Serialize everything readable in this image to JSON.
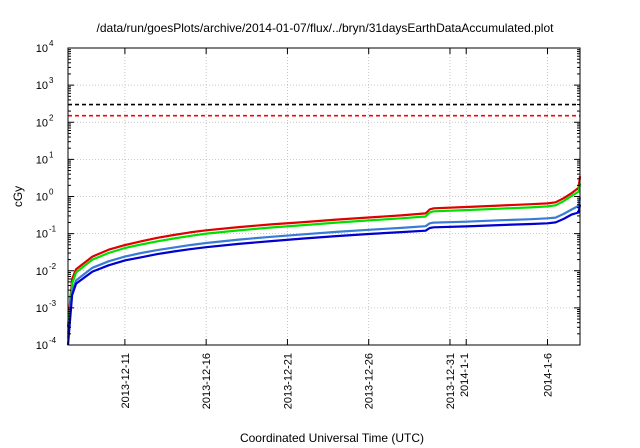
{
  "chart_data": {
    "type": "line",
    "title": "/data/run/goesPlots/archive/2014-01-07/flux/../bryn/31daysEarthDataAccumulated.plot",
    "xlabel": "Coordinated Universal Time (UTC)",
    "ylabel": "cGy",
    "yscale": "log",
    "ylim": [
      0.0001,
      10000
    ],
    "xlim": [
      "2013-12-07T12:00",
      "2014-01-08"
    ],
    "grid": true,
    "y_ticks": [
      {
        "base": "10",
        "exp": "-4",
        "value": 0.0001
      },
      {
        "base": "10",
        "exp": "-3",
        "value": 0.001
      },
      {
        "base": "10",
        "exp": "-2",
        "value": 0.01
      },
      {
        "base": "10",
        "exp": "-1",
        "value": 0.1
      },
      {
        "base": "10",
        "exp": "0",
        "value": 1
      },
      {
        "base": "10",
        "exp": "1",
        "value": 10
      },
      {
        "base": "10",
        "exp": "2",
        "value": 100
      },
      {
        "base": "10",
        "exp": "3",
        "value": 1000
      },
      {
        "base": "10",
        "exp": "4",
        "value": 10000
      }
    ],
    "x_ticks": [
      {
        "date": "2013-12-11",
        "label": "2013-12-11"
      },
      {
        "date": "2013-12-16",
        "label": "2013-12-16"
      },
      {
        "date": "2013-12-21",
        "label": "2013-12-21"
      },
      {
        "date": "2013-12-26",
        "label": "2013-12-26"
      },
      {
        "date": "2013-12-31",
        "label": "2013-12-31"
      },
      {
        "date": "2014-01-01",
        "label": "2014-1-1"
      },
      {
        "date": "2014-01-06",
        "label": "2014-1-6"
      }
    ],
    "reference_lines": [
      {
        "value": 300,
        "color": "#000000"
      },
      {
        "value": 150,
        "color": "#ff0000"
      }
    ],
    "series": [
      {
        "color": "#e00000",
        "points": [
          [
            "2013-12-07T12:00",
            0.0003
          ],
          [
            "2013-12-07T18:00",
            0.006
          ],
          [
            "2013-12-08",
            0.011
          ],
          [
            "2013-12-09",
            0.024
          ],
          [
            "2013-12-10",
            0.037
          ],
          [
            "2013-12-11",
            0.049
          ],
          [
            "2013-12-12",
            0.062
          ],
          [
            "2013-12-13",
            0.077
          ],
          [
            "2013-12-14",
            0.092
          ],
          [
            "2013-12-15",
            0.108
          ],
          [
            "2013-12-16",
            0.123
          ],
          [
            "2013-12-18",
            0.15
          ],
          [
            "2013-12-20",
            0.177
          ],
          [
            "2013-12-22",
            0.205
          ],
          [
            "2013-12-24",
            0.238
          ],
          [
            "2013-12-26",
            0.272
          ],
          [
            "2013-12-28",
            0.31
          ],
          [
            "2013-12-29T12:00",
            0.35
          ],
          [
            "2013-12-29T18:00",
            0.45
          ],
          [
            "2013-12-30",
            0.48
          ],
          [
            "2014-01-01",
            0.52
          ],
          [
            "2014-01-03",
            0.57
          ],
          [
            "2014-01-05",
            0.62
          ],
          [
            "2014-01-06",
            0.65
          ],
          [
            "2014-01-06T12:00",
            0.7
          ],
          [
            "2014-01-07",
            0.9
          ],
          [
            "2014-01-07T12:00",
            1.25
          ],
          [
            "2014-01-07T22:00",
            1.7
          ],
          [
            "2014-01-08",
            3.5
          ]
        ]
      },
      {
        "color": "#00e000",
        "points": [
          [
            "2013-12-07T12:00",
            0.0002
          ],
          [
            "2013-12-07T18:00",
            0.0045
          ],
          [
            "2013-12-08",
            0.009
          ],
          [
            "2013-12-09",
            0.02
          ],
          [
            "2013-12-10",
            0.03
          ],
          [
            "2013-12-11",
            0.041
          ],
          [
            "2013-12-12",
            0.051
          ],
          [
            "2013-12-13",
            0.062
          ],
          [
            "2013-12-14",
            0.074
          ],
          [
            "2013-12-15",
            0.087
          ],
          [
            "2013-12-16",
            0.1
          ],
          [
            "2013-12-18",
            0.122
          ],
          [
            "2013-12-20",
            0.146
          ],
          [
            "2013-12-22",
            0.17
          ],
          [
            "2013-12-24",
            0.198
          ],
          [
            "2013-12-26",
            0.227
          ],
          [
            "2013-12-28",
            0.258
          ],
          [
            "2013-12-29T12:00",
            0.29
          ],
          [
            "2013-12-29T18:00",
            0.37
          ],
          [
            "2013-12-30",
            0.4
          ],
          [
            "2014-01-01",
            0.43
          ],
          [
            "2014-01-03",
            0.47
          ],
          [
            "2014-01-05",
            0.51
          ],
          [
            "2014-01-06",
            0.54
          ],
          [
            "2014-01-06T12:00",
            0.58
          ],
          [
            "2014-01-07",
            0.75
          ],
          [
            "2014-01-07T12:00",
            1.05
          ],
          [
            "2014-01-07T22:00",
            1.35
          ],
          [
            "2014-01-08",
            2.2
          ]
        ]
      },
      {
        "color": "#3a7bd5",
        "points": [
          [
            "2013-12-07T12:00",
            0.00015
          ],
          [
            "2013-12-07T18:00",
            0.0028
          ],
          [
            "2013-12-08",
            0.0055
          ],
          [
            "2013-12-09",
            0.012
          ],
          [
            "2013-12-10",
            0.018
          ],
          [
            "2013-12-11",
            0.024
          ],
          [
            "2013-12-12",
            0.03
          ],
          [
            "2013-12-13",
            0.036
          ],
          [
            "2013-12-14",
            0.042
          ],
          [
            "2013-12-15",
            0.049
          ],
          [
            "2013-12-16",
            0.056
          ],
          [
            "2013-12-18",
            0.069
          ],
          [
            "2013-12-20",
            0.082
          ],
          [
            "2013-12-22",
            0.096
          ],
          [
            "2013-12-24",
            0.111
          ],
          [
            "2013-12-26",
            0.127
          ],
          [
            "2013-12-28",
            0.143
          ],
          [
            "2013-12-29T12:00",
            0.158
          ],
          [
            "2013-12-29T18:00",
            0.19
          ],
          [
            "2013-12-30",
            0.198
          ],
          [
            "2014-01-01",
            0.21
          ],
          [
            "2014-01-03",
            0.228
          ],
          [
            "2014-01-05",
            0.245
          ],
          [
            "2014-01-06",
            0.258
          ],
          [
            "2014-01-06T12:00",
            0.27
          ],
          [
            "2014-01-07",
            0.34
          ],
          [
            "2014-01-07T12:00",
            0.45
          ],
          [
            "2014-01-07T22:00",
            0.56
          ],
          [
            "2014-01-08",
            0.95
          ]
        ]
      },
      {
        "color": "#0000d0",
        "points": [
          [
            "2013-12-07T12:00",
            0.0001
          ],
          [
            "2013-12-07T18:00",
            0.0022
          ],
          [
            "2013-12-08",
            0.0045
          ],
          [
            "2013-12-09",
            0.0095
          ],
          [
            "2013-12-10",
            0.014
          ],
          [
            "2013-12-11",
            0.019
          ],
          [
            "2013-12-12",
            0.023
          ],
          [
            "2013-12-13",
            0.028
          ],
          [
            "2013-12-14",
            0.033
          ],
          [
            "2013-12-15",
            0.038
          ],
          [
            "2013-12-16",
            0.043
          ],
          [
            "2013-12-18",
            0.053
          ],
          [
            "2013-12-20",
            0.063
          ],
          [
            "2013-12-22",
            0.074
          ],
          [
            "2013-12-24",
            0.086
          ],
          [
            "2013-12-26",
            0.098
          ],
          [
            "2013-12-28",
            0.11
          ],
          [
            "2013-12-29T12:00",
            0.12
          ],
          [
            "2013-12-29T18:00",
            0.142
          ],
          [
            "2013-12-30",
            0.148
          ],
          [
            "2014-01-01",
            0.157
          ],
          [
            "2014-01-03",
            0.17
          ],
          [
            "2014-01-05",
            0.182
          ],
          [
            "2014-01-06",
            0.19
          ],
          [
            "2014-01-06T12:00",
            0.2
          ],
          [
            "2014-01-07",
            0.25
          ],
          [
            "2014-01-07T12:00",
            0.33
          ],
          [
            "2014-01-07T22:00",
            0.37
          ],
          [
            "2014-01-08",
            0.6
          ]
        ]
      }
    ]
  }
}
